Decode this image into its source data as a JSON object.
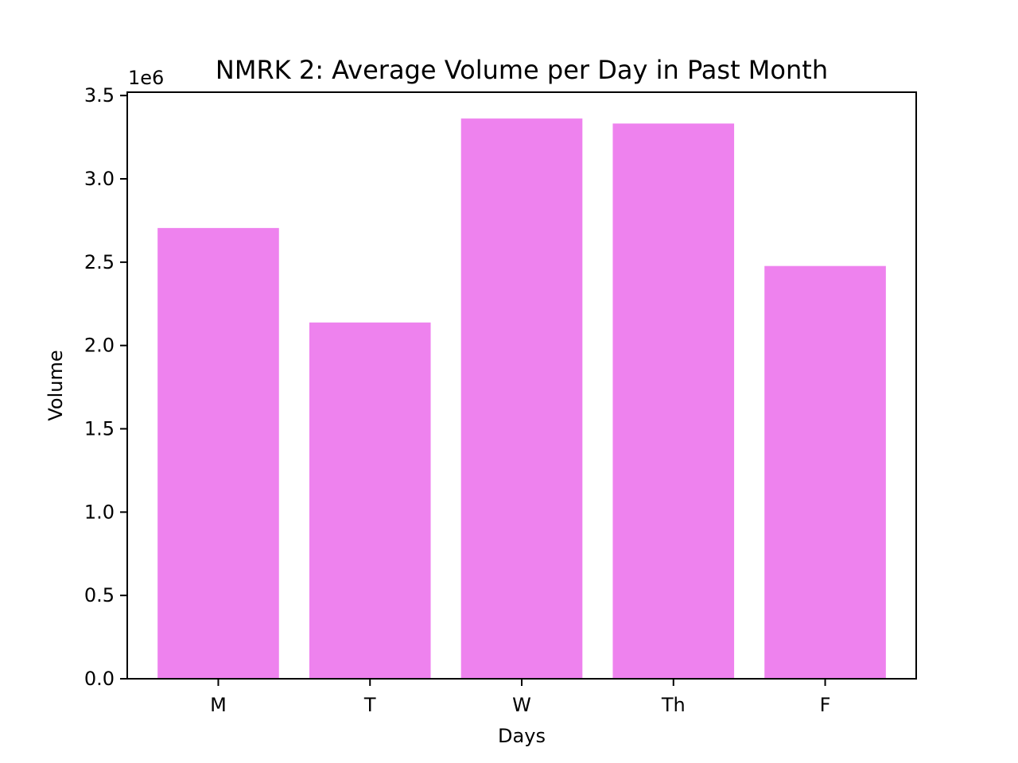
{
  "chart_data": {
    "type": "bar",
    "title": "NMRK 2: Average Volume per Day in Past Month",
    "xlabel": "Days",
    "ylabel": "Volume",
    "y_offset_label": "1e6",
    "categories": [
      "M",
      "T",
      "W",
      "Th",
      "F"
    ],
    "values": [
      2705000,
      2138000,
      3362000,
      3332000,
      2477000
    ],
    "ylim": [
      0,
      3520000
    ],
    "yticks": [
      0,
      500000,
      1000000,
      1500000,
      2000000,
      2500000,
      3000000,
      3500000
    ],
    "ytick_labels": [
      "0.0",
      "0.5",
      "1.0",
      "1.5",
      "2.0",
      "2.5",
      "3.0",
      "3.5"
    ],
    "bar_color": "#ee82ee",
    "grid": false,
    "legend": "none"
  }
}
